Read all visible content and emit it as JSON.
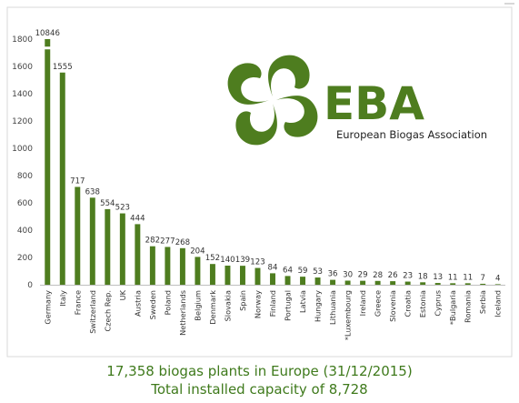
{
  "colors": {
    "bar": "#4e7d1f",
    "caption": "#3f7a1c",
    "logo": "#4e7d1f",
    "axis": "#bfbfbf",
    "frame": "#d9d9d9"
  },
  "logo": {
    "acronym": "EBA",
    "name": "European Biogas Association",
    "icon": "biogas-swirl-icon"
  },
  "captions": {
    "line1": "17,358 biogas plants in Europe (31/12/2015)",
    "line2": "Total installed capacity of 8,728"
  },
  "chart_data": {
    "type": "bar",
    "categories": [
      "Germany",
      "Italy",
      "France",
      "Switzerland",
      "Czech Rep.",
      "UK",
      "Austria",
      "Sweden",
      "Poland",
      "Netherlands",
      "Belgium",
      "Denmark",
      "Slovakia",
      "Spain",
      "Norway",
      "Finland",
      "Portugal",
      "Latvia",
      "Hungary",
      "Lithuania",
      "*Luxembourg",
      "Ireland",
      "Greece",
      "Slovenia",
      "Croatia",
      "Estonia",
      "Cyprus",
      "*Bulgaria",
      "Romania",
      "Serbia",
      "Iceland"
    ],
    "values": [
      10846,
      1555,
      717,
      638,
      554,
      523,
      444,
      282,
      277,
      268,
      204,
      152,
      140,
      139,
      123,
      84,
      64,
      59,
      53,
      36,
      30,
      29,
      28,
      26,
      23,
      18,
      13,
      11,
      11,
      7,
      4
    ],
    "ylim": [
      0,
      1800
    ],
    "yticks": [
      "0",
      "200",
      "400",
      "600",
      "800",
      "1000",
      "1200",
      "1400",
      "1600",
      "1800"
    ],
    "grid": false,
    "axis_break": true
  }
}
